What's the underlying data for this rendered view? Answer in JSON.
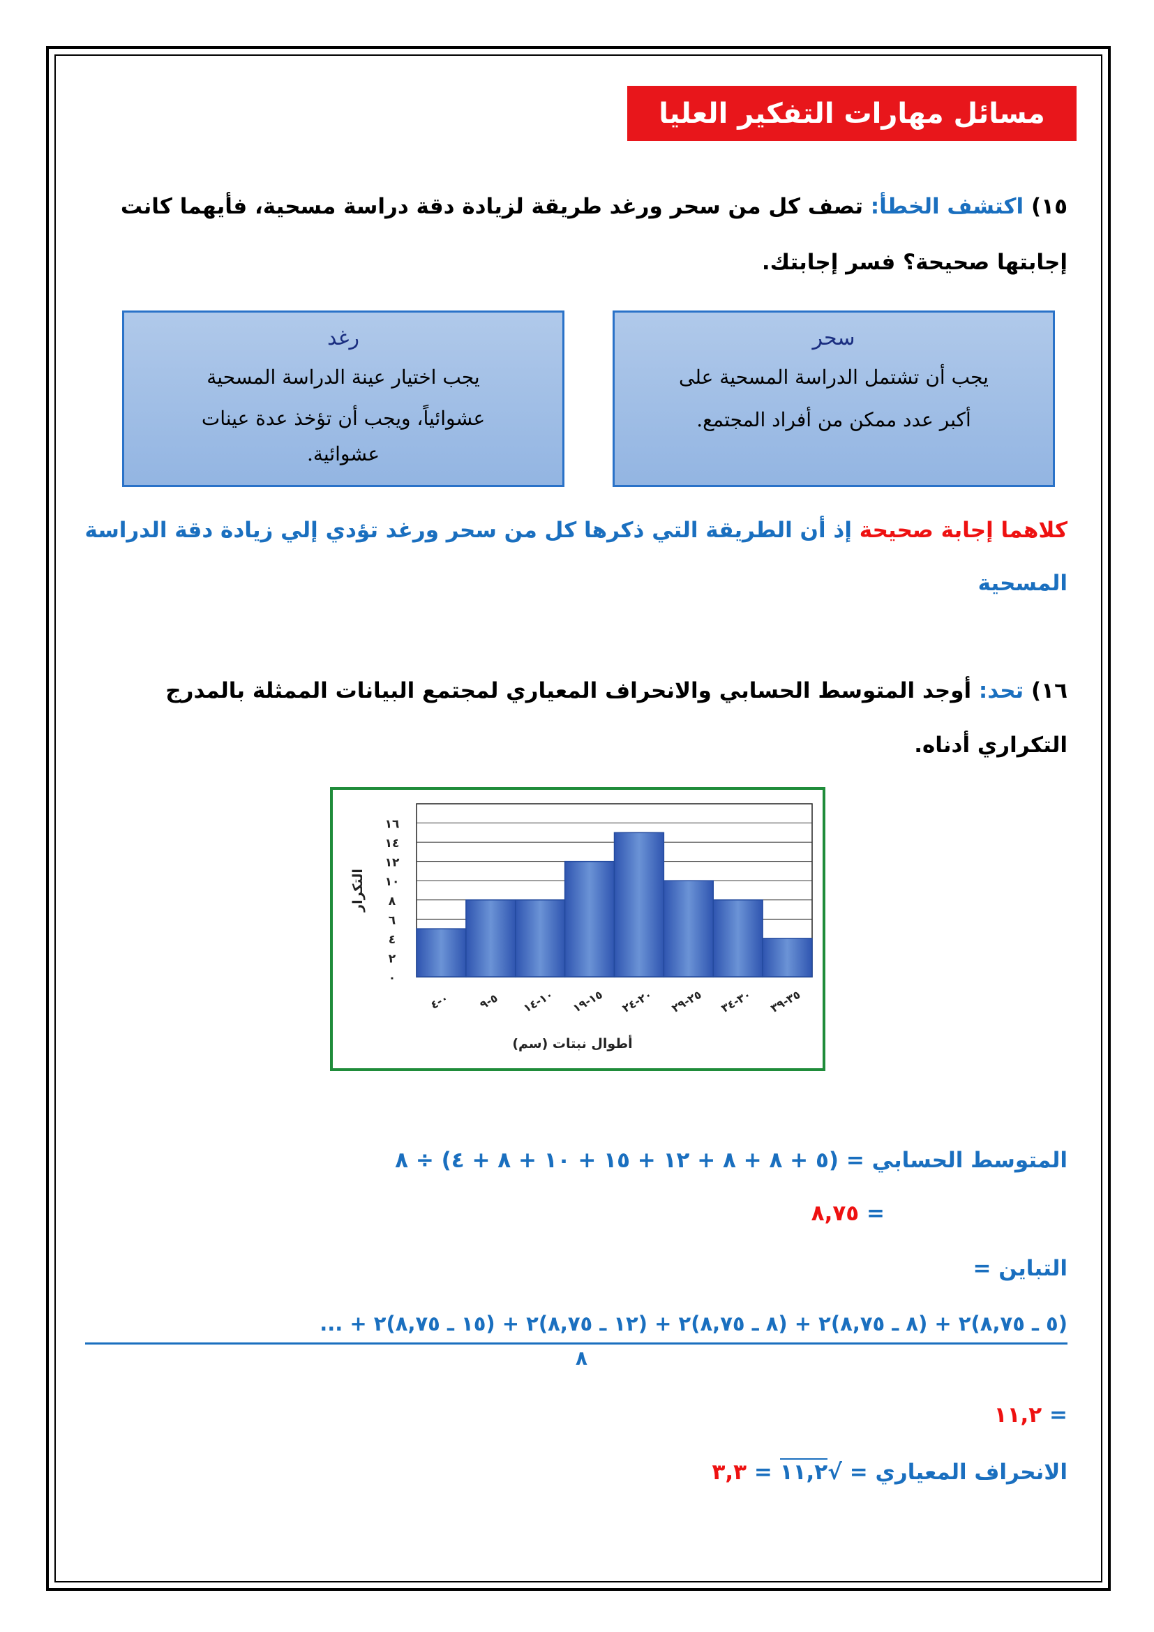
{
  "header": {
    "title": "مسائل مهارات التفكير العليا"
  },
  "q15": {
    "number": "١٥)",
    "label": "اكتشف الخطأ:",
    "text_line1": "تصف كل من سحر ورغد طريقة لزيادة دقة دراسة مسحية، فأيهما كانت",
    "text_line2": "إجابتها صحيحة؟ فسر إجابتك."
  },
  "boxes": [
    {
      "name": "سحر",
      "line1": "يجب أن تشتمل الدراسة المسحية على",
      "line2": "أكبر عدد ممكن من أفراد المجتمع."
    },
    {
      "name": "رغد",
      "line1": "يجب اختيار عينة الدراسة المسحية",
      "line2": "عشوائياً، ويجب أن تؤخذ عدة عينات",
      "line3": "عشوائية."
    }
  ],
  "answer15": {
    "highlight": "كلاهما إجابة صحيحة",
    "rest_line1": "إذ أن الطريقة التي ذكرها كل من سحر ورغد تؤدي إلي زيادة دقة الدراسة",
    "rest_line2": "المسحية"
  },
  "q16": {
    "number": "١٦)",
    "label": "تحد:",
    "text_line1": "أوجد المتوسط الحسابي والانحراف المعياري لمجتمع البيانات الممثلة بالمدرج",
    "text_line2": "التكراري أدناه."
  },
  "chart_data": {
    "type": "bar",
    "categories": [
      "٠-٤",
      "٥-٩",
      "١٠-١٤",
      "١٥-١٩",
      "٢٠-٢٤",
      "٢٥-٢٩",
      "٣٠-٣٤",
      "٣٥-٣٩"
    ],
    "values": [
      5,
      8,
      8,
      12,
      15,
      10,
      8,
      4
    ],
    "xlabel": "أطوال نبتات (سم)",
    "ylabel": "التكرار",
    "yticks": [
      "٠",
      "٢",
      "٤",
      "٦",
      "٨",
      "١٠",
      "١٢",
      "١٤",
      "١٦"
    ],
    "ylim": [
      0,
      18
    ],
    "grid": true,
    "bar_color": "#3f6fc4"
  },
  "solution": {
    "mean_label": "المتوسط الحسابي = (٥ + ٨ + ٨ + ١٢ + ١٥ + ١٠ + ٨ + ٤) ÷ ٨",
    "mean_eq": "=",
    "mean_value": "٨,٧٥",
    "variance_label": "التباين =",
    "variance_numerator": "(٥ ـ ٨,٧٥)٢ + (٨ ـ ٨,٧٥)٢ + (٨ ـ ٨,٧٥)٢ + (١٢ ـ ٨,٧٥)٢ + (١٥ ـ ٨,٧٥)٢ + ...",
    "variance_denominator": "٨",
    "variance_eq": "=",
    "variance_value": "١١,٢",
    "sd_label": "الانحراف المعياري =",
    "sd_radicand": "١١,٢",
    "sd_eq": "=",
    "sd_value": "٣,٣"
  }
}
